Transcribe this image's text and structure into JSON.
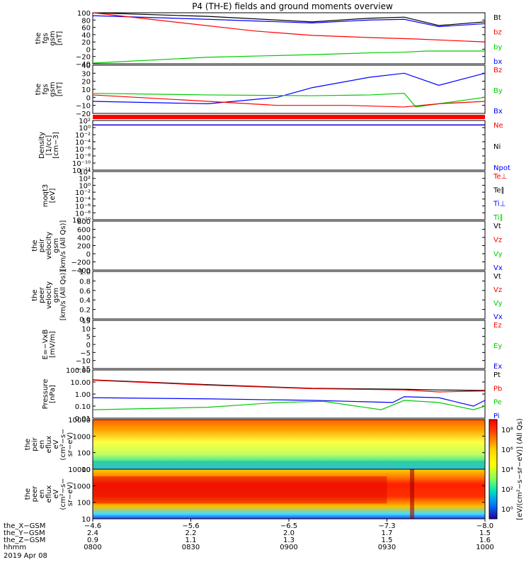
{
  "title": "P4 (TH-E) fields and ground moments overview",
  "colors": {
    "black": "#000000",
    "red": "#ff0000",
    "green": "#00cc00",
    "blue": "#0000ff"
  },
  "chart_data": [
    {
      "type": "line",
      "ylabel": [
        "the",
        "fgs",
        "gsm",
        "[nT]"
      ],
      "yticks": [
        "100",
        "80",
        "60",
        "40",
        "20",
        "0",
        "−20",
        "−40"
      ],
      "legend": [
        {
          "name": "Bt",
          "color": "black"
        },
        {
          "name": "bz",
          "color": "red"
        },
        {
          "name": "by",
          "color": "green"
        },
        {
          "name": "bx",
          "color": "blue"
        }
      ],
      "series": [
        {
          "name": "Bt",
          "color": "black",
          "values": [
            [
              -4.6,
              100
            ],
            [
              -5.6,
              90
            ],
            [
              -6.5,
              75
            ],
            [
              -7.0,
              85
            ],
            [
              -7.3,
              88
            ],
            [
              -7.6,
              65
            ],
            [
              -8.0,
              75
            ]
          ]
        },
        {
          "name": "bx",
          "color": "blue",
          "values": [
            [
              -4.6,
              92
            ],
            [
              -5.6,
              82
            ],
            [
              -6.5,
              72
            ],
            [
              -7.0,
              80
            ],
            [
              -7.3,
              82
            ],
            [
              -7.6,
              62
            ],
            [
              -8.0,
              70
            ]
          ]
        },
        {
          "name": "bz",
          "color": "red",
          "values": [
            [
              -4.6,
              120
            ],
            [
              -5.3,
              75
            ],
            [
              -6.0,
              50
            ],
            [
              -6.5,
              38
            ],
            [
              -7.0,
              32
            ],
            [
              -7.4,
              28
            ],
            [
              -8.0,
              20
            ]
          ]
        },
        {
          "name": "by",
          "color": "green",
          "values": [
            [
              -4.6,
              -38
            ],
            [
              -5.6,
              -22
            ],
            [
              -6.5,
              -15
            ],
            [
              -7.0,
              -10
            ],
            [
              -7.3,
              -8
            ],
            [
              -7.5,
              -5
            ],
            [
              -8.0,
              -5
            ]
          ]
        }
      ]
    },
    {
      "type": "line",
      "ylabel": [
        "the",
        "fgs",
        "gsm",
        "[nT]"
      ],
      "yticks": [
        "40",
        "30",
        "20",
        "10",
        "0",
        "−10",
        "−20"
      ],
      "legend": [
        {
          "name": "Bz",
          "color": "red"
        },
        {
          "name": "By",
          "color": "green"
        },
        {
          "name": "Bx",
          "color": "blue"
        }
      ],
      "series": [
        {
          "name": "Bx",
          "color": "blue",
          "values": [
            [
              -4.6,
              -5
            ],
            [
              -5.6,
              -8
            ],
            [
              -6.2,
              0
            ],
            [
              -6.5,
              12
            ],
            [
              -7.0,
              25
            ],
            [
              -7.3,
              30
            ],
            [
              -7.6,
              15
            ],
            [
              -8.0,
              30
            ]
          ]
        },
        {
          "name": "By",
          "color": "green",
          "values": [
            [
              -4.6,
              5
            ],
            [
              -5.6,
              3
            ],
            [
              -6.5,
              2
            ],
            [
              -7.0,
              3
            ],
            [
              -7.3,
              5
            ],
            [
              -7.4,
              -12
            ],
            [
              -8.0,
              0
            ]
          ]
        },
        {
          "name": "Bz",
          "color": "red",
          "values": [
            [
              -4.6,
              3
            ],
            [
              -5.6,
              -5
            ],
            [
              -6.2,
              -10
            ],
            [
              -6.8,
              -10
            ],
            [
              -7.3,
              -12
            ],
            [
              -7.6,
              -8
            ],
            [
              -8.0,
              -5
            ]
          ]
        }
      ]
    },
    {
      "type": "line",
      "ylabel": [
        "Density",
        "[1/cc]",
        "[cm−3]"
      ],
      "yticks": [
        "10²",
        "10⁰",
        "10⁻²",
        "10⁻⁴",
        "10⁻⁶",
        "10⁻⁸",
        "10⁻¹⁰",
        "10⁻¹²"
      ],
      "legend": [
        {
          "name": "Ne",
          "color": "red"
        },
        {
          "name": "Ni",
          "color": "black"
        },
        {
          "name": "Npot",
          "color": "blue"
        }
      ],
      "series": [
        {
          "name": "Ne",
          "color": "red",
          "values": [
            [
              -4.6,
              5
            ],
            [
              -8.0,
              5
            ]
          ]
        },
        {
          "name": "Npot",
          "color": "blue",
          "values": [
            [
              -4.6,
              6
            ],
            [
              -8.0,
              6
            ]
          ]
        }
      ]
    },
    {
      "type": "line",
      "ylabel": [
        "moqt3",
        "[eV]"
      ],
      "yticks": [
        "10⁴",
        "10²",
        "10⁰",
        "10⁻²",
        "10⁻⁴",
        "10⁻⁶",
        "10⁻⁸",
        "10⁻¹⁰"
      ],
      "legend": [
        {
          "name": "Te⊥",
          "color": "red"
        },
        {
          "name": "Te∥",
          "color": "black"
        },
        {
          "name": "Ti⊥",
          "color": "blue"
        },
        {
          "name": "Ti∥",
          "color": "green"
        }
      ],
      "series": []
    },
    {
      "type": "line",
      "ylabel": [
        "the",
        "peir",
        "velocity",
        "gsm",
        "[km/s (All Qs)]"
      ],
      "yticks": [
        "800",
        "600",
        "400",
        "200",
        "0",
        "−200",
        "−400"
      ],
      "legend": [
        {
          "name": "Vt",
          "color": "black"
        },
        {
          "name": "Vz",
          "color": "red"
        },
        {
          "name": "Vy",
          "color": "green"
        },
        {
          "name": "Vx",
          "color": "blue"
        }
      ],
      "series": []
    },
    {
      "type": "line",
      "ylabel": [
        "the",
        "peer",
        "velocity",
        "gsm",
        "[km/s (All Qs)]"
      ],
      "yticks": [
        "1.0",
        "0.8",
        "0.6",
        "0.4",
        "0.2",
        "0.0"
      ],
      "legend": [
        {
          "name": "Vt",
          "color": "black"
        },
        {
          "name": "Vz",
          "color": "red"
        },
        {
          "name": "Vy",
          "color": "green"
        },
        {
          "name": "Vx",
          "color": "blue"
        }
      ],
      "series": []
    },
    {
      "type": "line",
      "ylabel": [
        "E=−VxB",
        "[mV/m]"
      ],
      "yticks": [
        "15",
        "10",
        "5",
        "0",
        "−5",
        "−10",
        "−15"
      ],
      "legend": [
        {
          "name": "Ez",
          "color": "red"
        },
        {
          "name": "Ey",
          "color": "green"
        },
        {
          "name": "Ex",
          "color": "blue"
        }
      ],
      "series": []
    },
    {
      "type": "line",
      "ylabel": [
        "Pressure",
        "[nPa]"
      ],
      "yticks": [
        "100.00",
        "10.00",
        "1.00",
        "0.10",
        "0.01"
      ],
      "legend": [
        {
          "name": "Pt",
          "color": "black"
        },
        {
          "name": "Pb",
          "color": "red"
        },
        {
          "name": "Pe",
          "color": "green"
        },
        {
          "name": "Pi",
          "color": "blue"
        }
      ],
      "series": [
        {
          "name": "Pt",
          "color": "black",
          "values": [
            [
              -4.6,
              15
            ],
            [
              -5.6,
              6
            ],
            [
              -6.5,
              3
            ],
            [
              -7.3,
              2.5
            ],
            [
              -7.6,
              2.2
            ],
            [
              -8.0,
              2
            ]
          ]
        },
        {
          "name": "Pb",
          "color": "red",
          "values": [
            [
              -4.6,
              14
            ],
            [
              -5.6,
              5.5
            ],
            [
              -6.5,
              2.8
            ],
            [
              -7.3,
              2.2
            ],
            [
              -7.6,
              1.5
            ],
            [
              -8.0,
              1.8
            ]
          ]
        },
        {
          "name": "Pi",
          "color": "blue",
          "values": [
            [
              -4.6,
              0.5
            ],
            [
              -5.6,
              0.4
            ],
            [
              -6.5,
              0.3
            ],
            [
              -7.2,
              0.2
            ],
            [
              -7.3,
              0.6
            ],
            [
              -7.6,
              0.5
            ],
            [
              -7.9,
              0.1
            ],
            [
              -8.0,
              0.3
            ]
          ]
        },
        {
          "name": "Pe",
          "color": "green",
          "values": [
            [
              -4.6,
              0.05
            ],
            [
              -5.6,
              0.08
            ],
            [
              -6.2,
              0.2
            ],
            [
              -6.6,
              0.25
            ],
            [
              -7.1,
              0.05
            ],
            [
              -7.3,
              0.3
            ],
            [
              -7.6,
              0.2
            ],
            [
              -7.9,
              0.05
            ],
            [
              -8.0,
              0.1
            ]
          ]
        }
      ]
    },
    {
      "type": "heatmap",
      "ylabel": [
        "the",
        "peir",
        "en",
        "eflux",
        "eV",
        "(cm²−s−",
        "sr−eV)"
      ],
      "yticks": [
        "10000",
        "1000",
        "100",
        "10"
      ]
    },
    {
      "type": "heatmap",
      "ylabel": [
        "the",
        "peer",
        "en",
        "eflux",
        "eV",
        "(cm²−s−",
        "sr−eV)"
      ],
      "yticks": [
        "10000",
        "1000",
        "100",
        "10"
      ]
    }
  ],
  "colorbar": {
    "ticks": [
      "10⁸",
      "10⁶",
      "10⁴",
      "10²",
      "10⁰"
    ],
    "label": "[eV/(cm²−s−sr−eV)] (All Qs)"
  },
  "xaxis": {
    "ticks": [
      {
        "lines": [
          "−4.6",
          "2.4",
          "0.9",
          "0800"
        ]
      },
      {
        "lines": [
          "−5.6",
          "2.2",
          "1.1",
          "0830"
        ]
      },
      {
        "lines": [
          "−6.5",
          "2.0",
          "1.3",
          "0900"
        ]
      },
      {
        "lines": [
          "−7.3",
          "1.7",
          "1.5",
          "0930"
        ]
      },
      {
        "lines": [
          "−8.0",
          "1.5",
          "1.6",
          "1000"
        ]
      }
    ],
    "row_labels": [
      "the_X−GSM",
      "the_Y−GSM",
      "the_Z−GSM",
      "hhmm"
    ],
    "date": "2019 Apr 08"
  }
}
